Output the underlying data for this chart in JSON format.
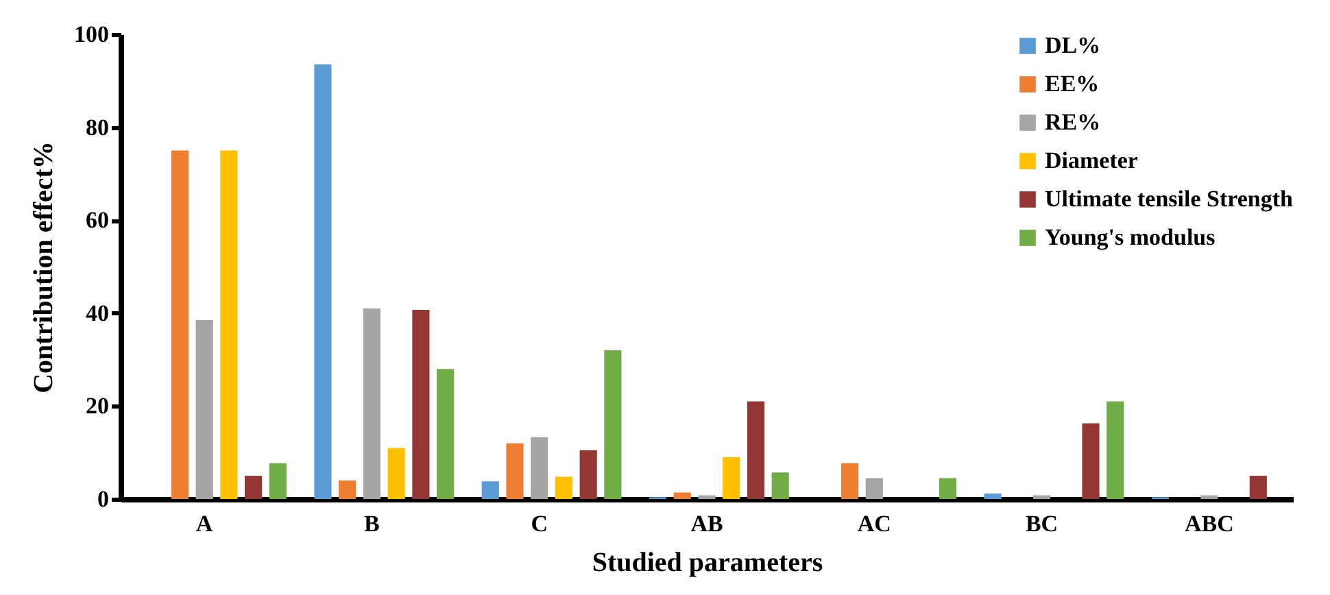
{
  "chart_data": {
    "type": "bar",
    "xlabel": "Studied parameters",
    "ylabel": "Contribution effect%",
    "categories": [
      "A",
      "B",
      "C",
      "AB",
      "AC",
      "BC",
      "ABC"
    ],
    "series": [
      {
        "name": "DL%",
        "color": "#5b9bd5",
        "values": [
          0,
          93.5,
          3.8,
          0.4,
          0,
          1.2,
          0.4
        ]
      },
      {
        "name": "EE%",
        "color": "#ed7d31",
        "values": [
          75,
          4,
          12,
          1.4,
          7.7,
          0,
          0
        ]
      },
      {
        "name": "RE%",
        "color": "#a5a5a5",
        "values": [
          38.5,
          41,
          13.3,
          0.8,
          4.5,
          0.8,
          0.8
        ]
      },
      {
        "name": "Diameter",
        "color": "#ffc000",
        "values": [
          75,
          11,
          4.8,
          9,
          0,
          0,
          0
        ]
      },
      {
        "name": "Ultimate tensile Strength",
        "color": "#943634",
        "values": [
          5,
          40.7,
          10.5,
          21,
          0,
          16.3,
          5
        ]
      },
      {
        "name": "Young's modulus",
        "color": "#70ad47",
        "values": [
          7.7,
          28,
          32,
          5.7,
          4.5,
          21,
          0
        ]
      }
    ],
    "ylim": [
      0,
      100
    ],
    "yticks": [
      0,
      20,
      40,
      60,
      80,
      100
    ],
    "grid": false,
    "legend": "top right"
  }
}
